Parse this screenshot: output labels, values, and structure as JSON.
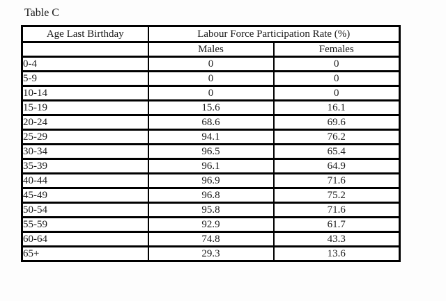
{
  "page": {
    "background": "#fdfdfd",
    "text_color": "#1a1a1a",
    "border_color": "#000000"
  },
  "title": "Table C",
  "table": {
    "col1_header": "Age Last Birthday",
    "group_header": "Labour Force Participation Rate (%)",
    "sub_headers": {
      "males": "Males",
      "females": "Females"
    },
    "rows": [
      {
        "age": "0-4",
        "males": "0",
        "females": "0"
      },
      {
        "age": "5-9",
        "males": "0",
        "females": "0"
      },
      {
        "age": "10-14",
        "males": "0",
        "females": "0"
      },
      {
        "age": "15-19",
        "males": "15.6",
        "females": "16.1"
      },
      {
        "age": "20-24",
        "males": "68.6",
        "females": "69.6"
      },
      {
        "age": "25-29",
        "males": "94.1",
        "females": "76.2"
      },
      {
        "age": "30-34",
        "males": "96.5",
        "females": "65.4"
      },
      {
        "age": "35-39",
        "males": "96.1",
        "females": "64.9"
      },
      {
        "age": "40-44",
        "males": "96.9",
        "females": "71.6"
      },
      {
        "age": "45-49",
        "males": "96.8",
        "females": "75.2"
      },
      {
        "age": "50-54",
        "males": "95.8",
        "females": "71.6"
      },
      {
        "age": "55-59",
        "males": "92.9",
        "females": "61.7"
      },
      {
        "age": "60-64",
        "males": "74.8",
        "females": "43.3"
      },
      {
        "age": "65+",
        "males": "29.3",
        "females": "13.6"
      }
    ]
  }
}
